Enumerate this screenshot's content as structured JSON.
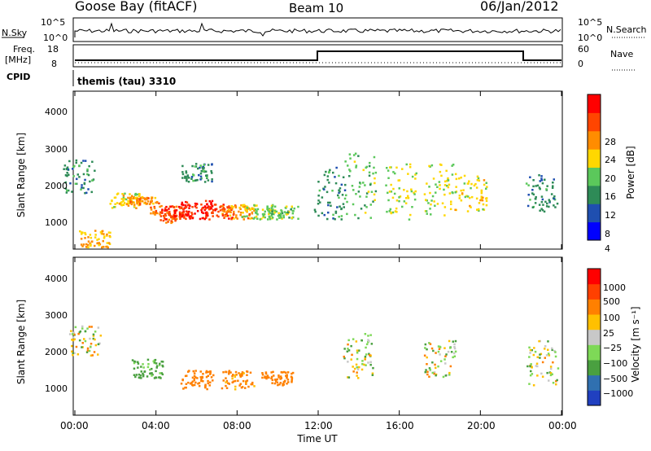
{
  "header": {
    "station": "Goose Bay (fitACF)",
    "beam": "Beam 10",
    "date": "06/Jan/2012"
  },
  "top_panels": {
    "nsky_label": "N.Sky",
    "nsky_ticks": [
      "10^5",
      "10^0"
    ],
    "nsearch_label": "N.Search",
    "nsearch_ticks": [
      "10^5",
      "10^0"
    ],
    "freq_label_1": "Freq.",
    "freq_label_2": "[MHz]",
    "freq_ticks": [
      "18",
      "8"
    ],
    "nave_label": "Nave",
    "nave_ticks": [
      "60",
      "0"
    ],
    "cpid_label": "CPID",
    "cpid_text": "themis (tau) 3310"
  },
  "chart_data": [
    {
      "type": "heatmap",
      "title": "",
      "ylabel": "Slant Range [km]",
      "xlabel": "",
      "ylim": [
        200,
        4400
      ],
      "yticks": [
        "4000",
        "3000",
        "2000",
        "1000"
      ],
      "colorbar_label": "Power [dB]",
      "colorbar_ticks": [
        "28",
        "24",
        "20",
        "16",
        "12",
        "8",
        "4"
      ],
      "colorbar_colors": [
        "#0000ff",
        "#1f4fb0",
        "#2e8b57",
        "#5bc85b",
        "#ffd700",
        "#ff8c00",
        "#ff4500",
        "#ff0000"
      ],
      "series": [
        {
          "name": "",
          "values": [
            {
              "t": 0.2,
              "r0": 1700,
              "r1": 2600,
              "p": 10
            },
            {
              "t": 0.9,
              "r0": 250,
              "r1": 700,
              "p": 20
            },
            {
              "t": 2.5,
              "r0": 1300,
              "r1": 1700,
              "p": 18
            },
            {
              "t": 3.3,
              "r0": 1400,
              "r1": 1600,
              "p": 22
            },
            {
              "t": 4.5,
              "r0": 900,
              "r1": 1400,
              "p": 24
            },
            {
              "t": 5.0,
              "r0": 1000,
              "r1": 1400,
              "p": 28
            },
            {
              "t": 6.0,
              "r0": 1000,
              "r1": 1500,
              "p": 28
            },
            {
              "t": 7.0,
              "r0": 1000,
              "r1": 1400,
              "p": 27
            },
            {
              "t": 8.0,
              "r0": 1000,
              "r1": 1400,
              "p": 22
            },
            {
              "t": 9.0,
              "r0": 1000,
              "r1": 1400,
              "p": 16
            },
            {
              "t": 10.2,
              "r0": 1000,
              "r1": 1350,
              "p": 14
            },
            {
              "t": 6.0,
              "r0": 2000,
              "r1": 2500,
              "p": 10
            },
            {
              "t": 12.5,
              "r0": 1000,
              "r1": 2400,
              "p": 10
            },
            {
              "t": 14.0,
              "r0": 1000,
              "r1": 2800,
              "p": 14
            },
            {
              "t": 16.0,
              "r0": 1000,
              "r1": 2500,
              "p": 16
            },
            {
              "t": 18.0,
              "r0": 1100,
              "r1": 2500,
              "p": 16
            },
            {
              "t": 19.5,
              "r0": 1200,
              "r1": 2200,
              "p": 18
            },
            {
              "t": 23.0,
              "r0": 1200,
              "r1": 2200,
              "p": 10
            }
          ]
        }
      ]
    },
    {
      "type": "heatmap",
      "title": "",
      "ylabel": "Slant Range [km]",
      "xlabel": "Time UT",
      "ylim": [
        200,
        4400
      ],
      "yticks": [
        "4000",
        "3000",
        "2000",
        "1000"
      ],
      "xticks": [
        "00:00",
        "04:00",
        "08:00",
        "12:00",
        "16:00",
        "20:00",
        "00:00"
      ],
      "xlim": [
        "00:00",
        "24:00"
      ],
      "colorbar_label": "Velocity [m s⁻¹]",
      "colorbar_ticks": [
        "1000",
        "500",
        "100",
        "25",
        "−25",
        "−100",
        "−500",
        "−1000"
      ],
      "colorbar_colors": [
        "#2040c0",
        "#3070b0",
        "#4aa040",
        "#7ed957",
        "#c8c8c8",
        "#ffc000",
        "#ff8000",
        "#ff4000",
        "#ff0000"
      ],
      "series": [
        {
          "name": "",
          "values": [
            {
              "t": 0.5,
              "r0": 1800,
              "r1": 2600,
              "v": 0
            },
            {
              "t": 3.5,
              "r0": 1200,
              "r1": 1700,
              "v": 200
            },
            {
              "t": 6.0,
              "r0": 900,
              "r1": 1400,
              "v": -300
            },
            {
              "t": 8.0,
              "r0": 900,
              "r1": 1400,
              "v": -200
            },
            {
              "t": 10.0,
              "r0": 1000,
              "r1": 1400,
              "v": -300
            },
            {
              "t": 14.0,
              "r0": 1200,
              "r1": 2400,
              "v": 0
            },
            {
              "t": 18.0,
              "r0": 1200,
              "r1": 2200,
              "v": 0
            },
            {
              "t": 23.0,
              "r0": 1000,
              "r1": 2200,
              "v": 0
            }
          ]
        }
      ]
    }
  ]
}
